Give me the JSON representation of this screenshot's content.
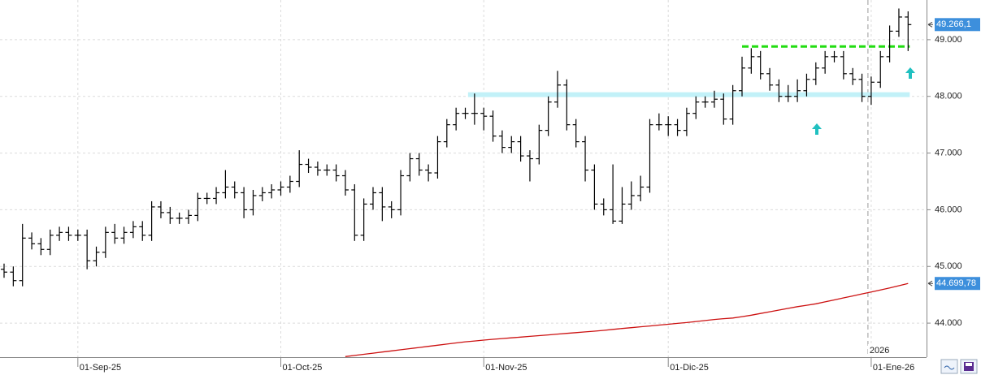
{
  "chart_data": {
    "type": "ohlc",
    "categories": [
      null,
      null,
      null,
      null,
      null,
      null,
      null,
      null,
      "01-Sep-25",
      null,
      null,
      null,
      null,
      null,
      null,
      null,
      null,
      null,
      null,
      null,
      null,
      null,
      null,
      null,
      null,
      null,
      null,
      null,
      null,
      null,
      "01-Oct-25",
      null,
      null,
      null,
      null,
      null,
      null,
      null,
      null,
      null,
      null,
      null,
      null,
      null,
      null,
      null,
      null,
      null,
      null,
      null,
      null,
      null,
      "01-Nov-25",
      null,
      null,
      null,
      null,
      null,
      null,
      null,
      null,
      null,
      null,
      null,
      null,
      null,
      null,
      null,
      null,
      null,
      null,
      null,
      "01-Dic-25",
      null,
      null,
      null,
      null,
      null,
      null,
      null,
      null,
      null,
      null,
      null,
      null,
      null,
      null,
      null,
      null,
      null,
      null,
      null,
      null,
      null,
      "01-Ene-26",
      null,
      null,
      null,
      null
    ],
    "ohlc": {
      "color": "#000000",
      "last_value_label": "49.266,1",
      "label_color": "#3d8fdc",
      "open": [
        44950,
        44900,
        44750,
        45500,
        45400,
        45300,
        45550,
        45600,
        45550,
        45550,
        45100,
        45250,
        45600,
        45500,
        45600,
        45700,
        45550,
        46050,
        45950,
        45850,
        45850,
        45900,
        46200,
        46200,
        46300,
        46400,
        46300,
        46000,
        46250,
        46300,
        46350,
        46400,
        46500,
        46800,
        46750,
        46700,
        46700,
        46600,
        46350,
        45550,
        46100,
        46300,
        46050,
        46000,
        46600,
        46900,
        46700,
        46650,
        47200,
        47500,
        47700,
        47700,
        47700,
        47650,
        47300,
        47100,
        47200,
        46950,
        46900,
        47400,
        47900,
        48200,
        47500,
        47200,
        46700,
        46100,
        46000,
        45800,
        46100,
        46250,
        46400,
        47500,
        47500,
        47500,
        47400,
        47700,
        47900,
        47900,
        47950,
        47600,
        48100,
        48500,
        48700,
        48400,
        48200,
        48000,
        48000,
        48100,
        48300,
        48500,
        48700,
        48700,
        48400,
        48300,
        48000,
        48250,
        48700,
        49150,
        49400
      ],
      "high": [
        45050,
        45000,
        45750,
        45600,
        45500,
        45650,
        45700,
        45700,
        45650,
        45650,
        45350,
        45700,
        45750,
        45700,
        45800,
        45800,
        46150,
        46150,
        46050,
        45950,
        46000,
        46300,
        46300,
        46400,
        46700,
        46500,
        46400,
        46350,
        46400,
        46450,
        46500,
        46600,
        47050,
        46900,
        46850,
        46800,
        46800,
        46700,
        46450,
        46200,
        46400,
        46400,
        46150,
        46700,
        47000,
        47000,
        46800,
        47300,
        47600,
        47800,
        47800,
        48050,
        47800,
        47750,
        47400,
        47300,
        47300,
        47050,
        47500,
        48000,
        48450,
        48300,
        47600,
        47300,
        46800,
        46200,
        46800,
        46400,
        46500,
        46600,
        47600,
        47700,
        47650,
        47600,
        47800,
        48000,
        48000,
        48100,
        48050,
        48200,
        48700,
        48850,
        48800,
        48500,
        48300,
        48200,
        48300,
        48400,
        48600,
        48800,
        48800,
        48800,
        48500,
        48400,
        48350,
        48800,
        49250,
        49550,
        49500
      ],
      "low": [
        44800,
        44650,
        44650,
        45300,
        45200,
        45200,
        45450,
        45450,
        45450,
        44950,
        45000,
        45150,
        45400,
        45400,
        45500,
        45450,
        45450,
        45850,
        45750,
        45750,
        45750,
        45800,
        46100,
        46100,
        46200,
        46200,
        45850,
        45900,
        46150,
        46200,
        46250,
        46300,
        46400,
        46650,
        46600,
        46600,
        46500,
        46250,
        45450,
        45450,
        46000,
        45800,
        45850,
        45900,
        46500,
        46600,
        46500,
        46550,
        47100,
        47400,
        47600,
        47500,
        47400,
        47200,
        47000,
        47000,
        46850,
        46500,
        46800,
        47300,
        47800,
        47400,
        47100,
        46500,
        46000,
        45900,
        45750,
        45750,
        46000,
        46150,
        46300,
        47400,
        47300,
        47300,
        47300,
        47600,
        47800,
        47800,
        47500,
        47500,
        48000,
        48400,
        48300,
        48100,
        47900,
        47900,
        47900,
        48000,
        48200,
        48400,
        48600,
        48300,
        48200,
        47900,
        47850,
        48150,
        48600,
        49050,
        48800
      ],
      "close": [
        44900,
        44750,
        45500,
        45400,
        45300,
        45550,
        45600,
        45550,
        45550,
        45100,
        45250,
        45600,
        45500,
        45600,
        45700,
        45550,
        46050,
        45950,
        45850,
        45850,
        45900,
        46200,
        46200,
        46300,
        46400,
        46300,
        46000,
        46250,
        46300,
        46350,
        46400,
        46500,
        46800,
        46750,
        46700,
        46700,
        46600,
        46350,
        45550,
        46100,
        46300,
        46050,
        46000,
        46600,
        46900,
        46700,
        46650,
        47200,
        47500,
        47700,
        47700,
        47700,
        47650,
        47300,
        47100,
        47200,
        46950,
        46900,
        47400,
        47900,
        48200,
        47500,
        47200,
        46700,
        46100,
        46000,
        45800,
        46100,
        46250,
        46400,
        47500,
        47500,
        47500,
        47400,
        47700,
        47900,
        47900,
        47950,
        47600,
        48100,
        48500,
        48700,
        48400,
        48200,
        48000,
        48000,
        48100,
        48300,
        48500,
        48700,
        48700,
        48400,
        48300,
        48000,
        48250,
        48700,
        49150,
        49400,
        49266.1
      ]
    },
    "moving_average": {
      "color": "#cc1111",
      "last_value_label": "44.699,78",
      "label_color": "#3d8fdc",
      "values": [
        null,
        null,
        null,
        null,
        null,
        null,
        null,
        null,
        null,
        null,
        null,
        null,
        null,
        null,
        null,
        null,
        null,
        null,
        null,
        null,
        null,
        null,
        null,
        null,
        null,
        null,
        null,
        null,
        null,
        null,
        null,
        null,
        null,
        null,
        null,
        null,
        null,
        43410,
        43430,
        43450,
        43470,
        43490,
        43510,
        43530,
        43550,
        43570,
        43590,
        43610,
        43630,
        43650,
        43670,
        43685,
        43700,
        43715,
        43728,
        43741,
        43754,
        43767,
        43780,
        43793,
        43806,
        43819,
        43832,
        43845,
        43858,
        43872,
        43890,
        43905,
        43920,
        43935,
        43950,
        43965,
        43980,
        43995,
        44010,
        44028,
        44046,
        44064,
        44078,
        44090,
        44115,
        44140,
        44170,
        44200,
        44230,
        44260,
        44290,
        44315,
        44340,
        44375,
        44410,
        44445,
        44480,
        44515,
        44550,
        44585,
        44620,
        44660,
        44699.78
      ]
    },
    "levels": [
      {
        "value": 48030,
        "color": "#c2f1f8"
      },
      {
        "value": 48880,
        "color": "#22dd11"
      }
    ],
    "year_label": "2026",
    "ylim": [
      43400,
      49700
    ],
    "yticks": [
      {
        "value": 44000,
        "label": "44.000"
      },
      {
        "value": 45000,
        "label": "45.000"
      },
      {
        "value": 46000,
        "label": "46.000"
      },
      {
        "value": 47000,
        "label": "47.000"
      },
      {
        "value": 48000,
        "label": "48.000"
      },
      {
        "value": 49000,
        "label": "49.000"
      }
    ],
    "grid": true
  }
}
